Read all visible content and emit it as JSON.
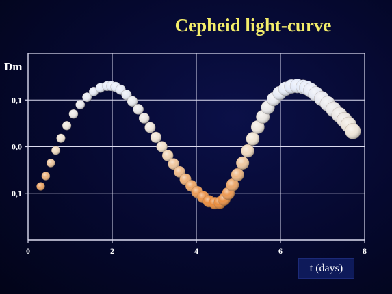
{
  "chart_data": {
    "type": "scatter",
    "title": "Cepheid light-curve",
    "xlabel": "t (days)",
    "ylabel": "Dm",
    "xlim": [
      0,
      8
    ],
    "ylim": [
      0.2,
      -0.2
    ],
    "y_axis_inverted": true,
    "grid": true,
    "x_ticks": [
      {
        "value": 0,
        "label": "0"
      },
      {
        "value": 2,
        "label": "2"
      },
      {
        "value": 4,
        "label": "4"
      },
      {
        "value": 6,
        "label": "6"
      },
      {
        "value": 8,
        "label": "8"
      }
    ],
    "y_ticks": [
      {
        "value": -0.1,
        "label": "-0,1"
      },
      {
        "value": 0.0,
        "label": "0,0"
      },
      {
        "value": 0.1,
        "label": "0,1"
      }
    ],
    "marker_style": "shaded spheres, colour graded from pale blue-white at maximum brightness to orange at minimum brightness",
    "colors": {
      "background": "#05082e",
      "title": "#f4ee6a",
      "grid": "#dcdcf0",
      "bright": "#e6ecfa",
      "mid": "#f2e4d0",
      "dim": "#e98a3a",
      "marker_rim": "#7a6a5a"
    },
    "x": [
      0.3,
      0.42,
      0.54,
      0.66,
      0.78,
      0.92,
      1.08,
      1.24,
      1.4,
      1.56,
      1.72,
      1.88,
      1.98,
      2.08,
      2.2,
      2.34,
      2.48,
      2.62,
      2.76,
      2.9,
      3.04,
      3.18,
      3.32,
      3.46,
      3.6,
      3.74,
      3.88,
      4.02,
      4.16,
      4.3,
      4.44,
      4.56,
      4.66,
      4.76,
      4.86,
      4.98,
      5.1,
      5.22,
      5.34,
      5.46,
      5.58,
      5.7,
      5.84,
      5.98,
      6.12,
      6.26,
      6.4,
      6.54,
      6.62,
      6.72,
      6.84,
      6.98,
      7.12,
      7.26,
      7.4,
      7.52,
      7.62,
      7.72
    ],
    "y": [
      0.085,
      0.063,
      0.035,
      0.008,
      -0.018,
      -0.045,
      -0.07,
      -0.09,
      -0.106,
      -0.118,
      -0.126,
      -0.13,
      -0.13,
      -0.128,
      -0.122,
      -0.111,
      -0.097,
      -0.08,
      -0.061,
      -0.041,
      -0.02,
      0.0,
      0.019,
      0.037,
      0.054,
      0.07,
      0.084,
      0.097,
      0.108,
      0.117,
      0.121,
      0.12,
      0.113,
      0.1,
      0.082,
      0.06,
      0.035,
      0.009,
      -0.017,
      -0.042,
      -0.064,
      -0.084,
      -0.102,
      -0.115,
      -0.124,
      -0.129,
      -0.13,
      -0.128,
      -0.126,
      -0.121,
      -0.113,
      -0.103,
      -0.092,
      -0.08,
      -0.068,
      -0.057,
      -0.047,
      -0.033
    ]
  }
}
